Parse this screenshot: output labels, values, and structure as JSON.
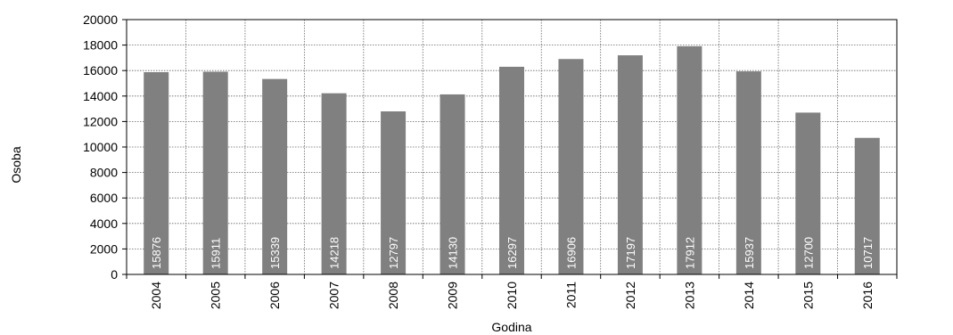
{
  "chart_data": {
    "type": "bar",
    "xlabel": "Godina",
    "ylabel": "Osoba",
    "ylim": [
      0,
      20000
    ],
    "yticks": [
      0,
      2000,
      4000,
      6000,
      8000,
      10000,
      12000,
      14000,
      16000,
      18000,
      20000
    ],
    "grid": true,
    "legend": "none",
    "categories": [
      "2004",
      "2005",
      "2006",
      "2007",
      "2008",
      "2009",
      "2010",
      "2011",
      "2012",
      "2013",
      "2014",
      "2015",
      "2016"
    ],
    "values": [
      15876,
      15911,
      15339,
      14218,
      12797,
      14130,
      16297,
      16906,
      17197,
      17912,
      15937,
      12700,
      10717
    ],
    "bar_color": "#808080",
    "label_color": "#ffffff"
  }
}
